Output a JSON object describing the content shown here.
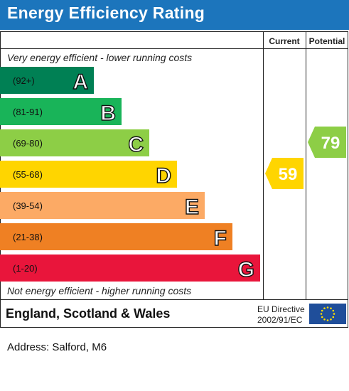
{
  "title": "Energy Efficiency Rating",
  "headers": {
    "current": "Current",
    "potential": "Potential"
  },
  "top_note": "Very energy efficient - lower running costs",
  "bottom_note": "Not energy efficient - higher running costs",
  "footer": {
    "region": "England, Scotland & Wales",
    "directive_line1": "EU Directive",
    "directive_line2": "2002/91/EC"
  },
  "address": "Address: Salford, M6",
  "chart_data": {
    "type": "bar",
    "bands": [
      {
        "letter": "A",
        "range": "(92+)",
        "min": 92,
        "max": 100,
        "color": "#008054"
      },
      {
        "letter": "B",
        "range": "(81-91)",
        "min": 81,
        "max": 91,
        "color": "#19b459"
      },
      {
        "letter": "C",
        "range": "(69-80)",
        "min": 69,
        "max": 80,
        "color": "#8dce46"
      },
      {
        "letter": "D",
        "range": "(55-68)",
        "min": 55,
        "max": 68,
        "color": "#ffd500"
      },
      {
        "letter": "E",
        "range": "(39-54)",
        "min": 39,
        "max": 54,
        "color": "#fcaa65"
      },
      {
        "letter": "F",
        "range": "(21-38)",
        "min": 21,
        "max": 38,
        "color": "#ef8023"
      },
      {
        "letter": "G",
        "range": "(1-20)",
        "min": 1,
        "max": 20,
        "color": "#e9153b"
      }
    ],
    "current": {
      "value": 59,
      "band": "D",
      "color": "#ffd500"
    },
    "potential": {
      "value": 79,
      "band": "C",
      "color": "#8dce46"
    }
  }
}
